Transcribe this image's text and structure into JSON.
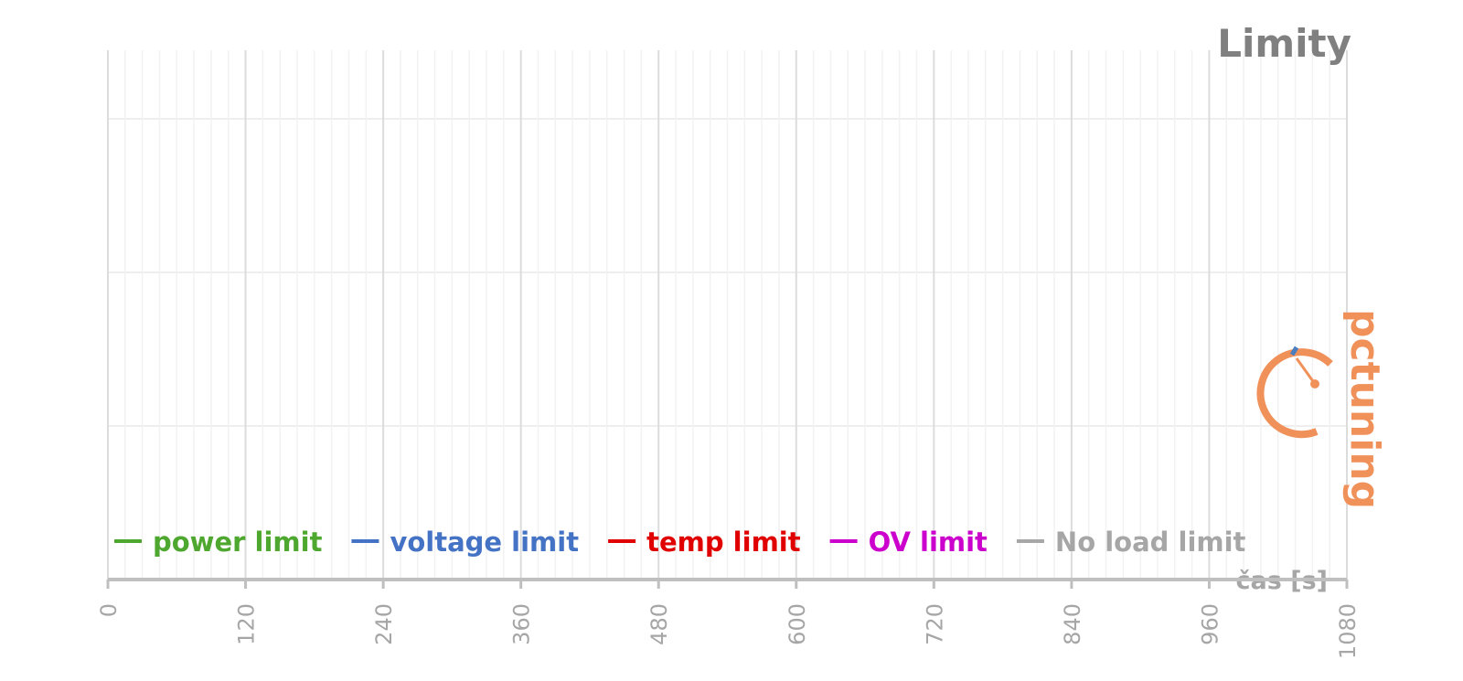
{
  "chart_data": {
    "type": "line",
    "title": "Limity",
    "x_label": "čas [s]",
    "watermark": "pctuning",
    "xlim": [
      0,
      1080
    ],
    "xticks": [
      0,
      120,
      240,
      360,
      480,
      600,
      720,
      840,
      960,
      1080
    ],
    "grid": true,
    "legend": "bottom",
    "series": [
      {
        "name": "power limit",
        "color": "#4ea72e",
        "values": []
      },
      {
        "name": "voltage limit",
        "color": "#4472c4",
        "values": []
      },
      {
        "name": "temp limit",
        "color": "#e00000",
        "values": []
      },
      {
        "name": "OV limit",
        "color": "#cc00cc",
        "values": []
      },
      {
        "name": "No load limit",
        "color": "#a6a6a6",
        "values": []
      }
    ]
  }
}
